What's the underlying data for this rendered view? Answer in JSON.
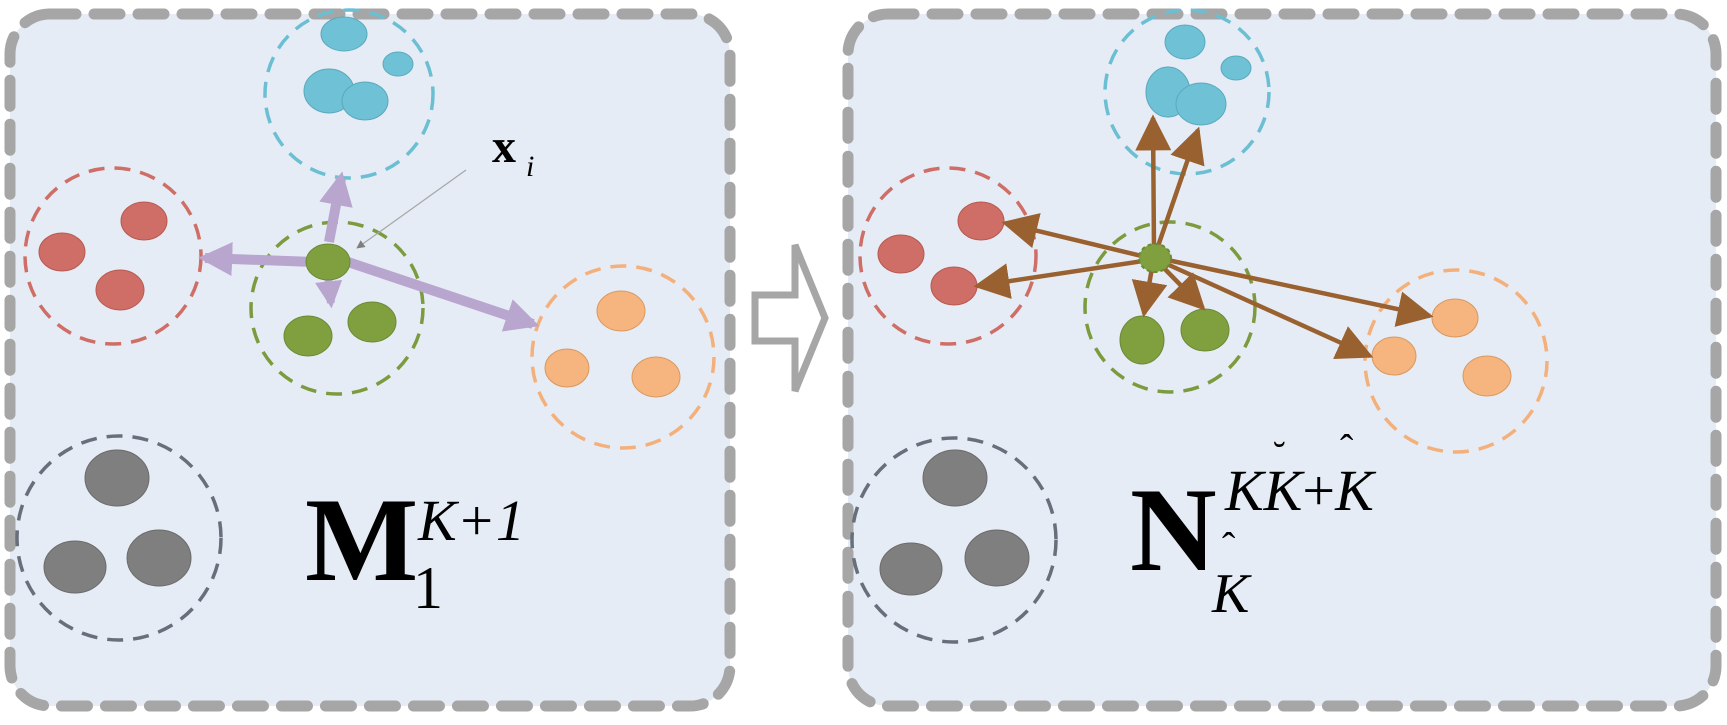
{
  "left_panel": {
    "label": {
      "base": "M",
      "sub": "1",
      "sup": "K+1"
    },
    "annotation": {
      "base": "x",
      "sub": "i"
    }
  },
  "right_panel": {
    "label": {
      "base": "N",
      "sub_base": "K",
      "sup_main": "KK",
      "sup_plus": "+",
      "sup_tail": "K"
    }
  },
  "colors": {
    "panel_fill": "#e6ecf5",
    "panel_border": "#a6a6a6",
    "cyan": "#6fc2d6",
    "cyan_border": "#6bbfd3",
    "red": "#cf6e66",
    "red_border": "#cf6e66",
    "green": "#80a040",
    "green_border": "#7c9b3e",
    "orange": "#f6b57f",
    "orange_border": "#f4b07a",
    "gray": "#7f7f7f",
    "gray_border": "#666f7b",
    "lavender_arrow": "#b9a6cf",
    "brown_arrow": "#9a6130",
    "pointer": "#7f7f7f"
  }
}
